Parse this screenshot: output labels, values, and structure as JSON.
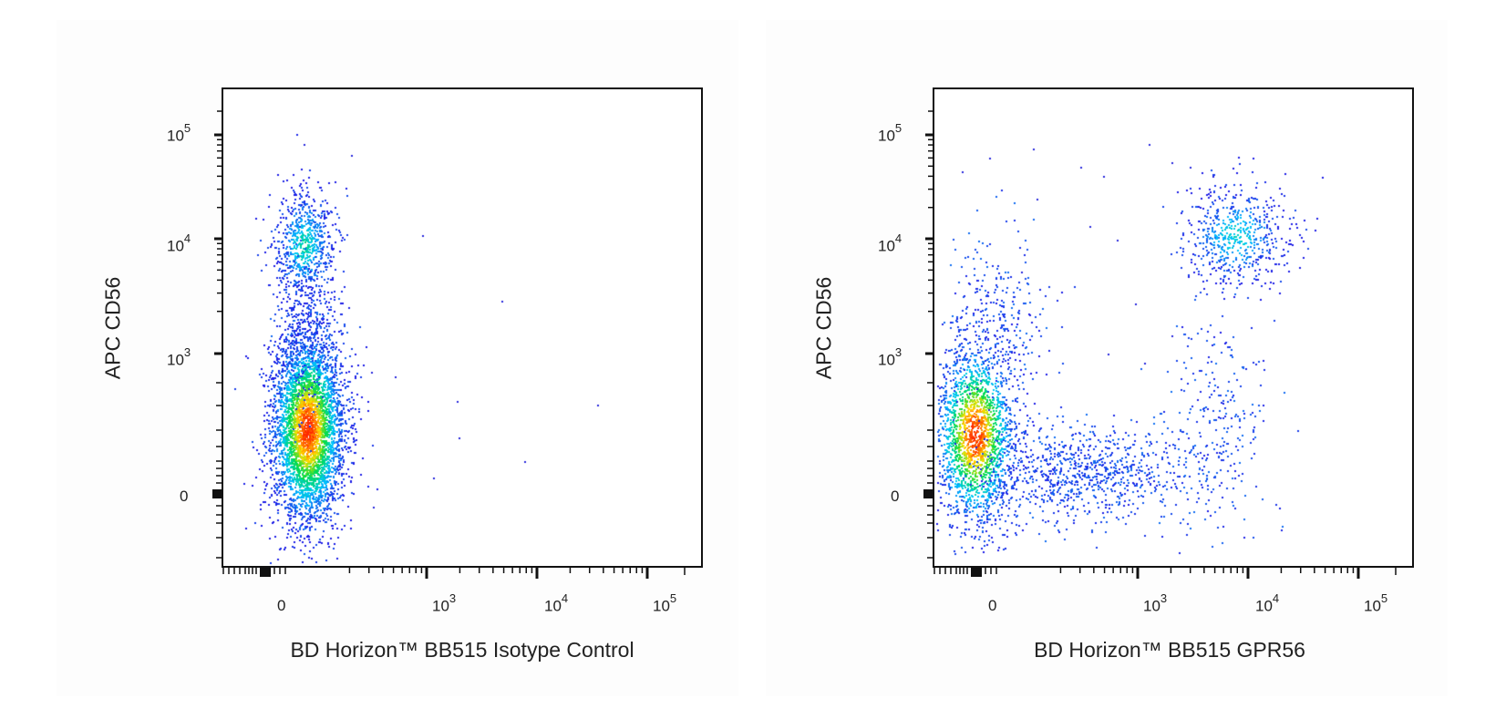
{
  "chart_data": [
    {
      "type": "scatter",
      "subtype": "flow-cytometry-pseudocolor-dot-plot",
      "title": "",
      "xlabel": "BD Horizon™ BB515 Isotype Control",
      "ylabel": "APC CD56",
      "x_scale": "biexponential",
      "y_scale": "biexponential",
      "x_ticks": [
        "0",
        "10^3",
        "10^4",
        "10^5"
      ],
      "y_ticks": [
        "0",
        "10^3",
        "10^4",
        "10^5"
      ],
      "color_scale": [
        "#1a1ae6",
        "#00c8ff",
        "#00e040",
        "#ffe000",
        "#ff2000"
      ],
      "populations": [
        {
          "name": "CD56- BB515-",
          "x_center": "~1e2",
          "y_center": "~1e2",
          "density": "high"
        },
        {
          "name": "CD56+ BB515-",
          "x_center": "~1e2",
          "y_center": "~1e4",
          "density": "medium"
        }
      ],
      "grid": false,
      "legend": "none"
    },
    {
      "type": "scatter",
      "subtype": "flow-cytometry-pseudocolor-dot-plot",
      "title": "",
      "xlabel": "BD Horizon™ BB515 GPR56",
      "ylabel": "APC CD56",
      "x_scale": "biexponential",
      "y_scale": "biexponential",
      "x_ticks": [
        "0",
        "10^3",
        "10^4",
        "10^5"
      ],
      "y_ticks": [
        "0",
        "10^3",
        "10^4",
        "10^5"
      ],
      "color_scale": [
        "#1a1ae6",
        "#00c8ff",
        "#00e040",
        "#ffe000",
        "#ff2000"
      ],
      "populations": [
        {
          "name": "CD56- GPR56-",
          "x_center": "~1e2",
          "y_center": "~1e2",
          "density": "high"
        },
        {
          "name": "CD56+ GPR56+",
          "x_center": "~1e4",
          "y_center": "~1e4",
          "density": "medium"
        },
        {
          "name": "CD56- GPR56+",
          "x_center": "~5e2-2e4",
          "y_center": "~0-5e2",
          "density": "low"
        }
      ],
      "grid": false,
      "legend": "none"
    }
  ],
  "plots": [
    {
      "xlabel": "BD Horizon™ BB515 Isotype Control",
      "ylabel": "APC CD56",
      "x_tick_labels": [
        {
          "base": "0",
          "exp": ""
        },
        {
          "base": "10",
          "exp": "3"
        },
        {
          "base": "10",
          "exp": "4"
        },
        {
          "base": "10",
          "exp": "5"
        }
      ],
      "y_tick_labels": [
        {
          "base": "10",
          "exp": "5"
        },
        {
          "base": "10",
          "exp": "4"
        },
        {
          "base": "10",
          "exp": "3"
        },
        {
          "base": "0",
          "exp": ""
        }
      ]
    },
    {
      "xlabel": "BD Horizon™ BB515 GPR56",
      "ylabel": "APC CD56",
      "x_tick_labels": [
        {
          "base": "0",
          "exp": ""
        },
        {
          "base": "10",
          "exp": "3"
        },
        {
          "base": "10",
          "exp": "4"
        },
        {
          "base": "10",
          "exp": "5"
        }
      ],
      "y_tick_labels": [
        {
          "base": "10",
          "exp": "5"
        },
        {
          "base": "10",
          "exp": "4"
        },
        {
          "base": "10",
          "exp": "3"
        },
        {
          "base": "0",
          "exp": ""
        }
      ]
    }
  ]
}
